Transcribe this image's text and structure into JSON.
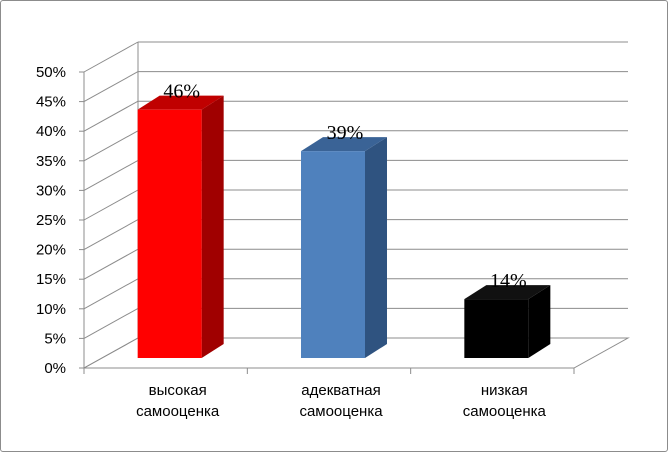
{
  "chart_data": {
    "type": "bar",
    "title": "",
    "xlabel": "",
    "ylabel": "",
    "categories": [
      [
        "высокая",
        "самооценка"
      ],
      [
        "адекватная",
        "самооценка"
      ],
      [
        "низкая",
        "самооценка"
      ]
    ],
    "values": [
      46,
      39,
      14
    ],
    "data_labels": [
      "46%",
      "39%",
      "14%"
    ],
    "colors": [
      "#ff0000",
      "#4f81bd",
      "#000000"
    ],
    "side_colors": [
      "#a00000",
      "#2f5380",
      "#000000"
    ],
    "top_colors": [
      "#c00000",
      "#3a6396",
      "#111111"
    ],
    "ylim": [
      0,
      50
    ],
    "y_ticks": [
      "0%",
      "5%",
      "10%",
      "15%",
      "20%",
      "25%",
      "30%",
      "35%",
      "40%",
      "45%",
      "50%"
    ],
    "grid": true,
    "three_d": true,
    "legend": "none"
  }
}
